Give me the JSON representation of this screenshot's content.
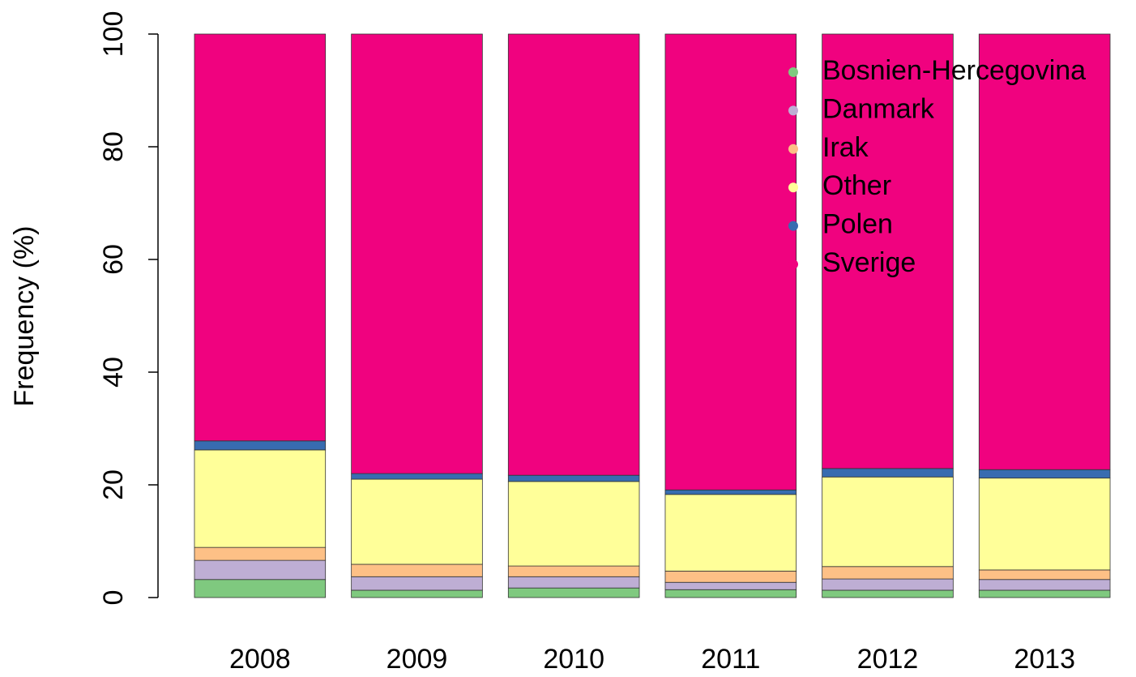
{
  "chart_data": {
    "type": "stacked_bar",
    "y_label": "Frequency (%)",
    "categories": [
      "2008",
      "2009",
      "2010",
      "2011",
      "2012",
      "2013"
    ],
    "series": [
      {
        "name": "Bosnien-Hercegovina",
        "color": "#7fc97f",
        "values": [
          3.2,
          1.3,
          1.7,
          1.4,
          1.3,
          1.3
        ]
      },
      {
        "name": "Danmark",
        "color": "#beaed4",
        "values": [
          3.4,
          2.4,
          2.0,
          1.3,
          2.0,
          1.9
        ]
      },
      {
        "name": "Irak",
        "color": "#fdc086",
        "values": [
          2.3,
          2.2,
          1.9,
          2.0,
          2.2,
          1.7
        ]
      },
      {
        "name": "Other",
        "color": "#ffff99",
        "values": [
          17.3,
          15.1,
          15.0,
          13.6,
          15.9,
          16.3
        ]
      },
      {
        "name": "Polen",
        "color": "#386cb0",
        "values": [
          1.6,
          1.0,
          1.1,
          0.8,
          1.5,
          1.5
        ]
      },
      {
        "name": "Sverige",
        "color": "#f0027f",
        "values": [
          72.2,
          78.0,
          78.3,
          80.9,
          77.1,
          77.3
        ]
      }
    ],
    "ylim": [
      0,
      100
    ],
    "yticks": [
      0,
      20,
      40,
      60,
      80,
      100
    ],
    "legend": "topright"
  }
}
